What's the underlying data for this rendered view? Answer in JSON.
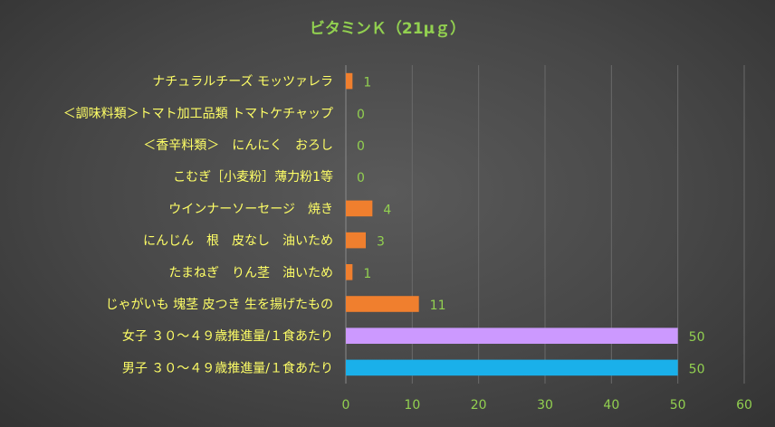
{
  "chart_data": {
    "type": "bar",
    "orientation": "horizontal",
    "title": "ビタミンＫ（21μｇ）",
    "categories": [
      "ナチュラルチーズ モッツァレラ",
      "＜調味料類＞トマト加工品類 トマトケチャップ",
      "＜香辛料類＞　にんにく　おろし",
      "こむぎ［小麦粉］薄力粉1等",
      "ウインナーソーセージ　焼き",
      "にんじん　根　皮なし　油いため",
      "たまねぎ　りん茎　油いため",
      "じゃがいも 塊茎 皮つき 生を揚げたもの",
      "女子 ３０～４９歳推進量/１食あたり",
      "男子 ３０～４９歳推進量/１食あたり"
    ],
    "values": [
      1,
      0,
      0,
      0,
      4,
      3,
      1,
      11,
      50,
      50
    ],
    "bar_colors": [
      "#f07f2e",
      "#f07f2e",
      "#f07f2e",
      "#f07f2e",
      "#f07f2e",
      "#f07f2e",
      "#f07f2e",
      "#f07f2e",
      "#cc99ff",
      "#1ab0ea"
    ],
    "xlim": [
      0,
      60
    ],
    "xticks": [
      "0",
      "10",
      "20",
      "30",
      "40",
      "50",
      "60"
    ],
    "xlabel": "",
    "ylabel": "",
    "grid": true,
    "legend": "none"
  }
}
